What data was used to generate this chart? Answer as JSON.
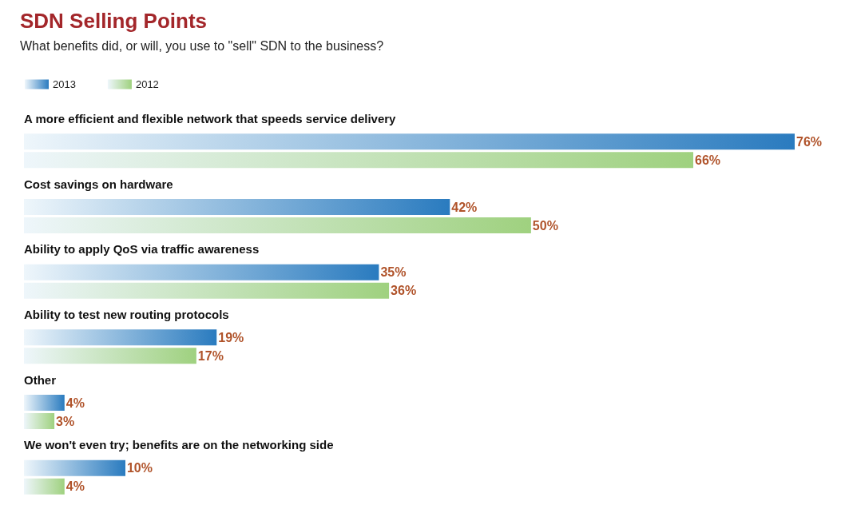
{
  "chart_data": {
    "type": "bar",
    "orientation": "horizontal",
    "title": "SDN Selling Points",
    "subtitle": "What benefits did, or will, you use to \"sell\" SDN to the business?",
    "categories": [
      "A more efficient and flexible network that speeds service delivery",
      "Cost savings on hardware",
      "Ability to apply QoS via traffic awareness",
      "Ability to test new routing protocols",
      "Other",
      "We won't even try; benefits are on the networking side"
    ],
    "series": [
      {
        "name": "2013",
        "color": "#2a7bbf",
        "values": [
          76,
          42,
          35,
          19,
          4,
          10
        ],
        "value_labels": [
          "76%",
          "42%",
          "35%",
          "19%",
          "4%",
          "10%"
        ]
      },
      {
        "name": "2012",
        "color": "#9fd17f",
        "values": [
          66,
          50,
          36,
          17,
          3,
          4
        ],
        "value_labels": [
          "66%",
          "50%",
          "36%",
          "17%",
          "3%",
          "4%"
        ]
      }
    ],
    "legend": "top left"
  }
}
